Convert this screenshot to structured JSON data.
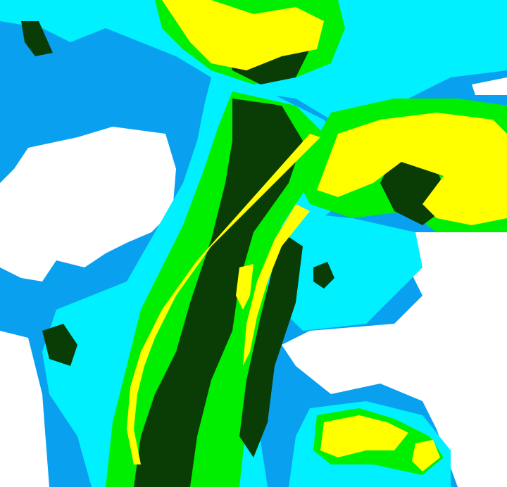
{
  "map": {
    "type": "precipitation-radar",
    "colors": {
      "none": "#ffffff",
      "light": "#0aa0f0",
      "light_moderate": "#00f0ff",
      "moderate": "#00ee00",
      "heavy": "#0a3d05",
      "very_heavy": "#ffff00"
    }
  }
}
